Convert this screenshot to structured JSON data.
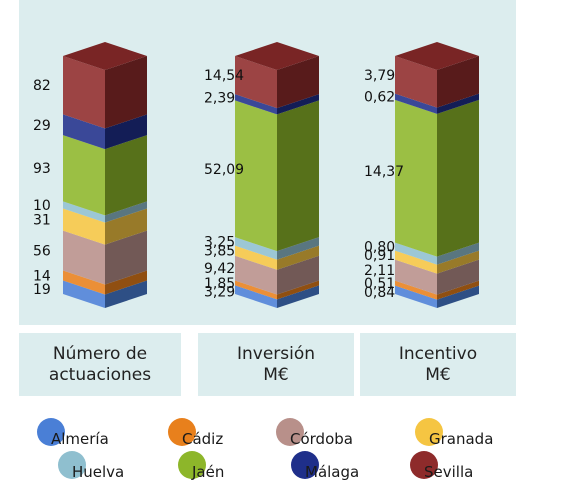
{
  "chart_data": {
    "type": "bar",
    "subtype": "stacked-100-3d",
    "categories": [
      "Número de\nactuaciones",
      "Inversión\nM€",
      "Incentivo\nM€"
    ],
    "series": [
      {
        "name": "Almería",
        "color": "#4a7fd6",
        "values": [
          19,
          3.29,
          0.84
        ],
        "labels": [
          "19",
          "3,29",
          "0,84"
        ]
      },
      {
        "name": "Cádiz",
        "color": "#e8801c",
        "values": [
          14,
          1.85,
          0.51
        ],
        "labels": [
          "14",
          "1,85",
          "0,51"
        ]
      },
      {
        "name": "Córdoba",
        "color": "#b8908a",
        "values": [
          56,
          9.42,
          2.11
        ],
        "labels": [
          "56",
          "9,42",
          "2,11"
        ]
      },
      {
        "name": "Granada",
        "color": "#f5c542",
        "values": [
          31,
          3.85,
          0.91
        ],
        "labels": [
          "31",
          "3,85",
          "0,91"
        ]
      },
      {
        "name": "Huelva",
        "color": "#8fbfcf",
        "values": [
          10,
          3.25,
          0.8
        ],
        "labels": [
          "10",
          "3,25",
          "0,80"
        ]
      },
      {
        "name": "Jaén",
        "color": "#8db62a",
        "values": [
          93,
          52.09,
          14.37
        ],
        "labels": [
          "93",
          "52,09",
          "14,37"
        ]
      },
      {
        "name": "Málaga",
        "color": "#1f2f8a",
        "values": [
          29,
          2.39,
          0.62
        ],
        "labels": [
          "29",
          "2,39",
          "0,62"
        ]
      },
      {
        "name": "Sevilla",
        "color": "#8e2b2b",
        "values": [
          82,
          14.54,
          3.79
        ],
        "labels": [
          "82",
          "14,54",
          "3,79"
        ]
      }
    ],
    "legend_position": "bottom",
    "grid": false
  }
}
